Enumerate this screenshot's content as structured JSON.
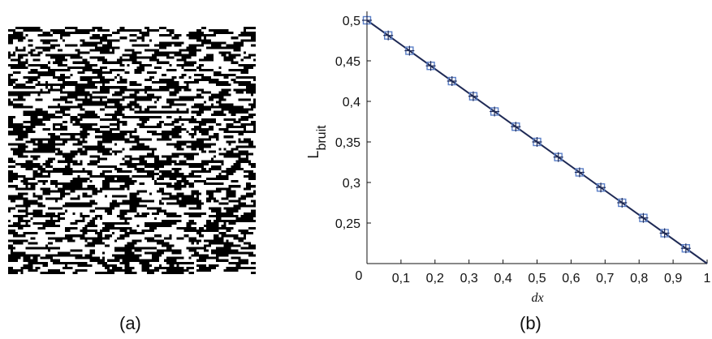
{
  "panels": {
    "a": {
      "caption": "(a)"
    },
    "b": {
      "caption": "(b)"
    }
  },
  "chart_data": {
    "type": "line",
    "xlabel": "dx",
    "ylabel_main": "L",
    "ylabel_sub": "bruit",
    "xlim": [
      0,
      1
    ],
    "ylim": [
      0.2,
      0.52
    ],
    "x_ticks": [
      {
        "v": 0,
        "label": "0"
      },
      {
        "v": 0.1,
        "label": "0,1"
      },
      {
        "v": 0.2,
        "label": "0,2"
      },
      {
        "v": 0.3,
        "label": "0,3"
      },
      {
        "v": 0.4,
        "label": "0,4"
      },
      {
        "v": 0.5,
        "label": "0,5"
      },
      {
        "v": 0.6,
        "label": "0,6"
      },
      {
        "v": 0.7,
        "label": "0,7"
      },
      {
        "v": 0.8,
        "label": "0,8"
      },
      {
        "v": 0.9,
        "label": "0,9"
      },
      {
        "v": 1,
        "label": "1"
      }
    ],
    "y_ticks": [
      {
        "v": 0.25,
        "label": "0,25"
      },
      {
        "v": 0.3,
        "label": "0,3"
      },
      {
        "v": 0.35,
        "label": "0,35"
      },
      {
        "v": 0.4,
        "label": "0,4"
      },
      {
        "v": 0.45,
        "label": "0,45"
      },
      {
        "v": 0.5,
        "label": "0,5"
      }
    ],
    "line": {
      "x": [
        0,
        1
      ],
      "y": [
        0.5,
        0.2
      ]
    },
    "points": {
      "x": [
        0,
        0.0625,
        0.125,
        0.1875,
        0.25,
        0.3125,
        0.375,
        0.4375,
        0.5,
        0.5625,
        0.625,
        0.6875,
        0.75,
        0.8125,
        0.875,
        0.9375
      ],
      "y": [
        0.5,
        0.4813,
        0.4625,
        0.4438,
        0.425,
        0.4063,
        0.3875,
        0.3688,
        0.35,
        0.3313,
        0.3125,
        0.2938,
        0.275,
        0.2563,
        0.2375,
        0.2188
      ]
    },
    "line_color": "#1f2a55",
    "marker_color": "#5b7fc7"
  }
}
